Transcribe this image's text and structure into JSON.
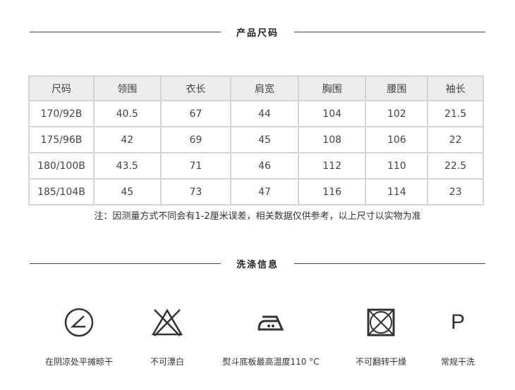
{
  "size_title": "产品尺码",
  "columns": [
    "尺码",
    "领围",
    "衣长",
    "肩宽",
    "胸围",
    "腰围",
    "袖长"
  ],
  "rows": [
    [
      "170/92B",
      "40.5",
      "67",
      "44",
      "104",
      "102",
      "21.5"
    ],
    [
      "175/96B",
      "42",
      "69",
      "45",
      "108",
      "106",
      "22"
    ],
    [
      "180/100B",
      "43.5",
      "71",
      "46",
      "112",
      "110",
      "22.5"
    ],
    [
      "185/104B",
      "45",
      "73",
      "47",
      "116",
      "114",
      "23"
    ]
  ],
  "note": "注：因测量方式不同会有1-2厘米误差，相关数据仅供参考，以上尺寸以实物为准",
  "care_title": "洗涤信息",
  "care": [
    {
      "icon": "dry-flat-in-shade-icon",
      "label": "在阴凉处平摊晾干"
    },
    {
      "icon": "no-bleach-icon",
      "label": "不可漂白"
    },
    {
      "icon": "iron-low-temp-icon",
      "label": "熨斗底板最高温度110 °C"
    },
    {
      "icon": "no-tumble-dry-icon",
      "label": "不可翻转干燥"
    },
    {
      "icon": "dry-clean-p-icon",
      "label": "常规干洗",
      "glyph": "P"
    }
  ]
}
